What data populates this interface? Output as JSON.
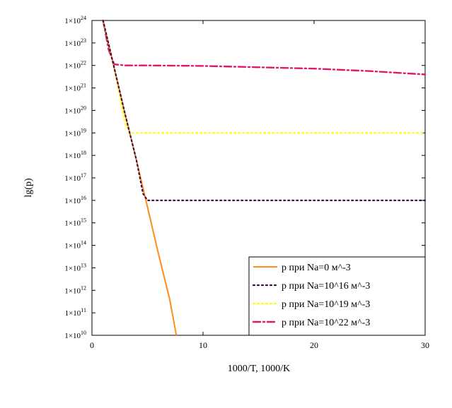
{
  "chart_data": {
    "type": "line",
    "xlabel": "1000/T, 1000/K",
    "ylabel": "lg(p)",
    "xlim": [
      0,
      30
    ],
    "ylim": [
      10,
      24
    ],
    "y_scale": "log",
    "y_tick_format": "1×10^n",
    "x_ticks": [
      "0",
      "10",
      "20",
      "30"
    ],
    "y_ticks": [
      10,
      11,
      12,
      13,
      14,
      15,
      16,
      17,
      18,
      19,
      20,
      21,
      22,
      23,
      24
    ],
    "grid": false,
    "legend_position": "bottom-right",
    "series": [
      {
        "name": "p при Na=0 м^-3",
        "color": "#ff8c1a",
        "style": "solid",
        "x": [
          1.0,
          2.0,
          3.0,
          4.0,
          5.0,
          6.0,
          7.0,
          7.6
        ],
        "y": [
          24.0,
          21.9,
          19.8,
          17.8,
          15.7,
          13.6,
          11.6,
          10.0
        ]
      },
      {
        "name": "p при Na=10^16 м^-3",
        "color": "#3a0f4f",
        "style": "dotted",
        "x": [
          1.0,
          2.0,
          3.0,
          4.0,
          4.6,
          5.0,
          10.0,
          20.0,
          30.0
        ],
        "y": [
          24.0,
          21.9,
          19.8,
          17.8,
          16.3,
          16.0,
          16.0,
          16.0,
          16.0
        ]
      },
      {
        "name": "p при Na=10^19 м^-3",
        "color": "#ffff00",
        "style": "dotted",
        "x": [
          1.0,
          2.0,
          2.6,
          3.0,
          3.4,
          10.0,
          20.0,
          30.0
        ],
        "y": [
          24.0,
          21.9,
          20.4,
          19.4,
          19.0,
          19.0,
          19.0,
          19.0
        ]
      },
      {
        "name": "p при Na=10^22 м^-3",
        "color": "#e0186c",
        "style": "dashdot",
        "x": [
          1.0,
          1.5,
          2.0,
          3.0,
          5.0,
          10.0,
          15.0,
          20.0,
          25.0,
          30.0
        ],
        "y": [
          24.0,
          22.7,
          22.05,
          22.0,
          22.0,
          21.98,
          21.92,
          21.86,
          21.75,
          21.6
        ]
      }
    ]
  }
}
